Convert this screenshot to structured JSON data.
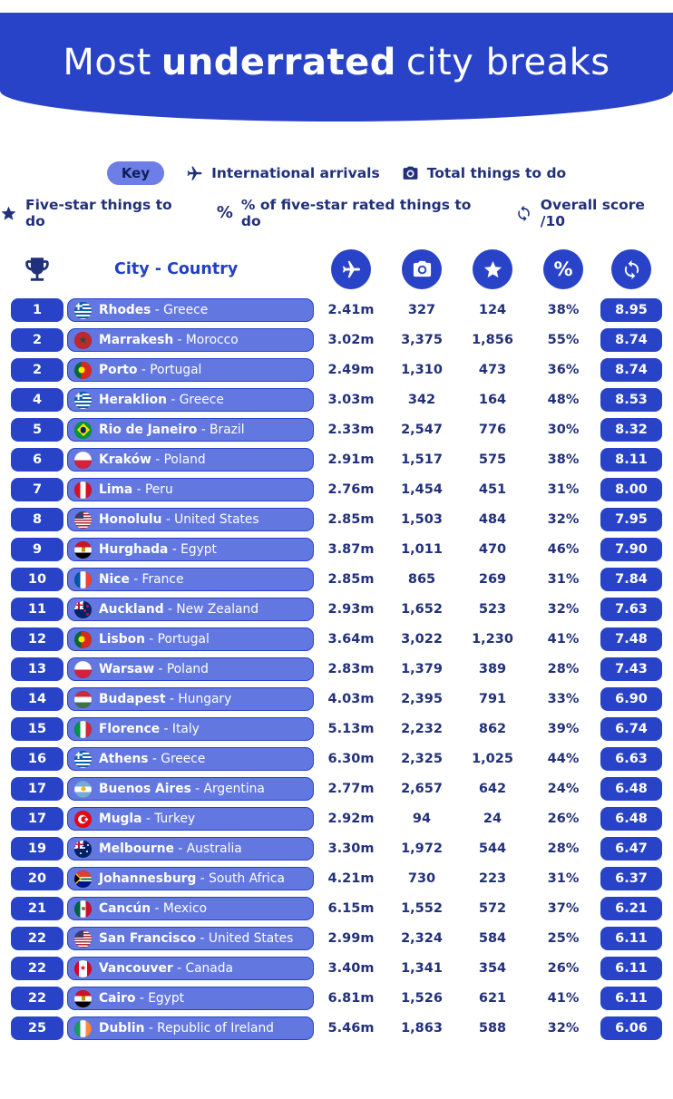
{
  "title": {
    "pre": "Most",
    "highlight": "underrated",
    "post": "city breaks"
  },
  "key": {
    "badge": "Key",
    "line1": [
      {
        "icon": "plane-icon",
        "label": "International arrivals"
      },
      {
        "icon": "camera-icon",
        "label": "Total things to do"
      }
    ],
    "line2": [
      {
        "icon": "star-icon",
        "label": "Five-star things to do"
      },
      {
        "icon": "percent-icon",
        "label": "% of five-star rated things to do"
      },
      {
        "icon": "refresh-icon",
        "label": "Overall score /10"
      }
    ]
  },
  "table": {
    "city_column_header": "City - Country",
    "columns": [
      {
        "icon": "plane-icon"
      },
      {
        "icon": "camera-icon"
      },
      {
        "icon": "star-icon"
      },
      {
        "icon": "percent-icon"
      },
      {
        "icon": "refresh-icon"
      }
    ]
  },
  "colors": {
    "primary_blue": "#2843c8",
    "row_blue": "#6377e0",
    "text_navy": "#21307a"
  },
  "chart_data": {
    "type": "table",
    "title": "Most underrated city breaks",
    "columns": [
      "Rank",
      "City",
      "Country",
      "International arrivals",
      "Total things to do",
      "Five-star things to do",
      "% of five-star rated things to do",
      "Overall score /10"
    ],
    "rows": [
      {
        "rank": "1",
        "flag": "greece",
        "city": "Rhodes",
        "country": "Greece",
        "arrivals": "2.41m",
        "things_to_do": "327",
        "five_star_things": "124",
        "five_star_pct": "38%",
        "score": "8.95"
      },
      {
        "rank": "2",
        "flag": "morocco",
        "city": "Marrakesh",
        "country": "Morocco",
        "arrivals": "3.02m",
        "things_to_do": "3,375",
        "five_star_things": "1,856",
        "five_star_pct": "55%",
        "score": "8.74"
      },
      {
        "rank": "2",
        "flag": "portugal",
        "city": "Porto",
        "country": "Portugal",
        "arrivals": "2.49m",
        "things_to_do": "1,310",
        "five_star_things": "473",
        "five_star_pct": "36%",
        "score": "8.74"
      },
      {
        "rank": "4",
        "flag": "greece",
        "city": "Heraklion",
        "country": "Greece",
        "arrivals": "3.03m",
        "things_to_do": "342",
        "five_star_things": "164",
        "five_star_pct": "48%",
        "score": "8.53"
      },
      {
        "rank": "5",
        "flag": "brazil",
        "city": "Rio de Janeiro",
        "country": "Brazil",
        "arrivals": "2.33m",
        "things_to_do": "2,547",
        "five_star_things": "776",
        "five_star_pct": "30%",
        "score": "8.32"
      },
      {
        "rank": "6",
        "flag": "poland",
        "city": "Kraków",
        "country": "Poland",
        "arrivals": "2.91m",
        "things_to_do": "1,517",
        "five_star_things": "575",
        "five_star_pct": "38%",
        "score": "8.11"
      },
      {
        "rank": "7",
        "flag": "peru",
        "city": "Lima",
        "country": "Peru",
        "arrivals": "2.76m",
        "things_to_do": "1,454",
        "five_star_things": "451",
        "five_star_pct": "31%",
        "score": "8.00"
      },
      {
        "rank": "8",
        "flag": "united-states",
        "city": "Honolulu",
        "country": "United States",
        "arrivals": "2.85m",
        "things_to_do": "1,503",
        "five_star_things": "484",
        "five_star_pct": "32%",
        "score": "7.95"
      },
      {
        "rank": "9",
        "flag": "egypt",
        "city": "Hurghada",
        "country": "Egypt",
        "arrivals": "3.87m",
        "things_to_do": "1,011",
        "five_star_things": "470",
        "five_star_pct": "46%",
        "score": "7.90"
      },
      {
        "rank": "10",
        "flag": "france",
        "city": "Nice",
        "country": "France",
        "arrivals": "2.85m",
        "things_to_do": "865",
        "five_star_things": "269",
        "five_star_pct": "31%",
        "score": "7.84"
      },
      {
        "rank": "11",
        "flag": "new-zealand",
        "city": "Auckland",
        "country": "New Zealand",
        "arrivals": "2.93m",
        "things_to_do": "1,652",
        "five_star_things": "523",
        "five_star_pct": "32%",
        "score": "7.63"
      },
      {
        "rank": "12",
        "flag": "portugal",
        "city": "Lisbon",
        "country": "Portugal",
        "arrivals": "3.64m",
        "things_to_do": "3,022",
        "five_star_things": "1,230",
        "five_star_pct": "41%",
        "score": "7.48"
      },
      {
        "rank": "13",
        "flag": "poland",
        "city": "Warsaw",
        "country": "Poland",
        "arrivals": "2.83m",
        "things_to_do": "1,379",
        "five_star_things": "389",
        "five_star_pct": "28%",
        "score": "7.43"
      },
      {
        "rank": "14",
        "flag": "hungary",
        "city": "Budapest",
        "country": "Hungary",
        "arrivals": "4.03m",
        "things_to_do": "2,395",
        "five_star_things": "791",
        "five_star_pct": "33%",
        "score": "6.90"
      },
      {
        "rank": "15",
        "flag": "italy",
        "city": "Florence",
        "country": "Italy",
        "arrivals": "5.13m",
        "things_to_do": "2,232",
        "five_star_things": "862",
        "five_star_pct": "39%",
        "score": "6.74"
      },
      {
        "rank": "16",
        "flag": "greece",
        "city": "Athens",
        "country": "Greece",
        "arrivals": "6.30m",
        "things_to_do": "2,325",
        "five_star_things": "1,025",
        "five_star_pct": "44%",
        "score": "6.63"
      },
      {
        "rank": "17",
        "flag": "argentina",
        "city": "Buenos Aires",
        "country": "Argentina",
        "arrivals": "2.77m",
        "things_to_do": "2,657",
        "five_star_things": "642",
        "five_star_pct": "24%",
        "score": "6.48"
      },
      {
        "rank": "17",
        "flag": "turkey",
        "city": "Mugla",
        "country": "Turkey",
        "arrivals": "2.92m",
        "things_to_do": "94",
        "five_star_things": "24",
        "five_star_pct": "26%",
        "score": "6.48"
      },
      {
        "rank": "19",
        "flag": "australia",
        "city": "Melbourne",
        "country": "Australia",
        "arrivals": "3.30m",
        "things_to_do": "1,972",
        "five_star_things": "544",
        "five_star_pct": "28%",
        "score": "6.47"
      },
      {
        "rank": "20",
        "flag": "south-africa",
        "city": "Johannesburg",
        "country": "South Africa",
        "arrivals": "4.21m",
        "things_to_do": "730",
        "five_star_things": "223",
        "five_star_pct": "31%",
        "score": "6.37"
      },
      {
        "rank": "21",
        "flag": "mexico",
        "city": "Cancún",
        "country": "Mexico",
        "arrivals": "6.15m",
        "things_to_do": "1,552",
        "five_star_things": "572",
        "five_star_pct": "37%",
        "score": "6.21"
      },
      {
        "rank": "22",
        "flag": "united-states",
        "city": "San Francisco",
        "country": "United States",
        "arrivals": "2.99m",
        "things_to_do": "2,324",
        "five_star_things": "584",
        "five_star_pct": "25%",
        "score": "6.11"
      },
      {
        "rank": "22",
        "flag": "canada",
        "city": "Vancouver",
        "country": "Canada",
        "arrivals": "3.40m",
        "things_to_do": "1,341",
        "five_star_things": "354",
        "five_star_pct": "26%",
        "score": "6.11"
      },
      {
        "rank": "22",
        "flag": "egypt",
        "city": "Cairo",
        "country": "Egypt",
        "arrivals": "6.81m",
        "things_to_do": "1,526",
        "five_star_things": "621",
        "five_star_pct": "41%",
        "score": "6.11"
      },
      {
        "rank": "25",
        "flag": "ireland",
        "city": "Dublin",
        "country": "Republic of Ireland",
        "arrivals": "5.46m",
        "things_to_do": "1,863",
        "five_star_things": "588",
        "five_star_pct": "32%",
        "score": "6.06"
      }
    ]
  }
}
